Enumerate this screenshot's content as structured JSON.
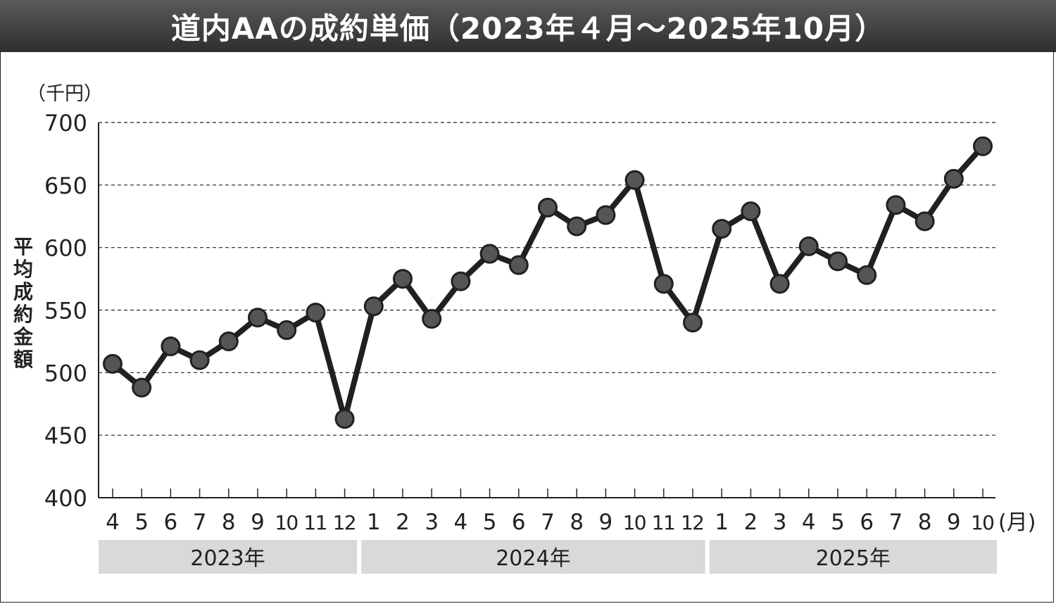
{
  "title": "道内AAの成約単価（2023年４月～2025年10月）",
  "chart_data": {
    "type": "line",
    "title": "道内AAの成約単価（2023年４月～2025年10月）",
    "y_unit": "（千円）",
    "ylabel": "平均成約金額",
    "x_unit": "(月)",
    "ylim": [
      400,
      700
    ],
    "yticks": [
      400,
      450,
      500,
      550,
      600,
      650,
      700
    ],
    "grid": "dashed horizontal",
    "x": [
      "4",
      "5",
      "6",
      "7",
      "8",
      "9",
      "10",
      "11",
      "12",
      "1",
      "2",
      "3",
      "4",
      "5",
      "6",
      "7",
      "8",
      "9",
      "10",
      "11",
      "12",
      "1",
      "2",
      "3",
      "4",
      "5",
      "6",
      "7",
      "8",
      "9",
      "10"
    ],
    "years": [
      {
        "label": "2023年",
        "start": 0,
        "end": 8
      },
      {
        "label": "2024年",
        "start": 9,
        "end": 20
      },
      {
        "label": "2025年",
        "start": 21,
        "end": 30
      }
    ],
    "series": [
      {
        "values": [
          507,
          488,
          521,
          510,
          525,
          544,
          534,
          548,
          463,
          553,
          575,
          543,
          573,
          595,
          586,
          632,
          617,
          626,
          654,
          571,
          540,
          615,
          629,
          571,
          601,
          589,
          578,
          634,
          621,
          655,
          681
        ]
      }
    ],
    "colors": {
      "line": "#231f20",
      "marker": "#555555",
      "year_band": "#d9d9d9",
      "grid": "#222222"
    }
  }
}
